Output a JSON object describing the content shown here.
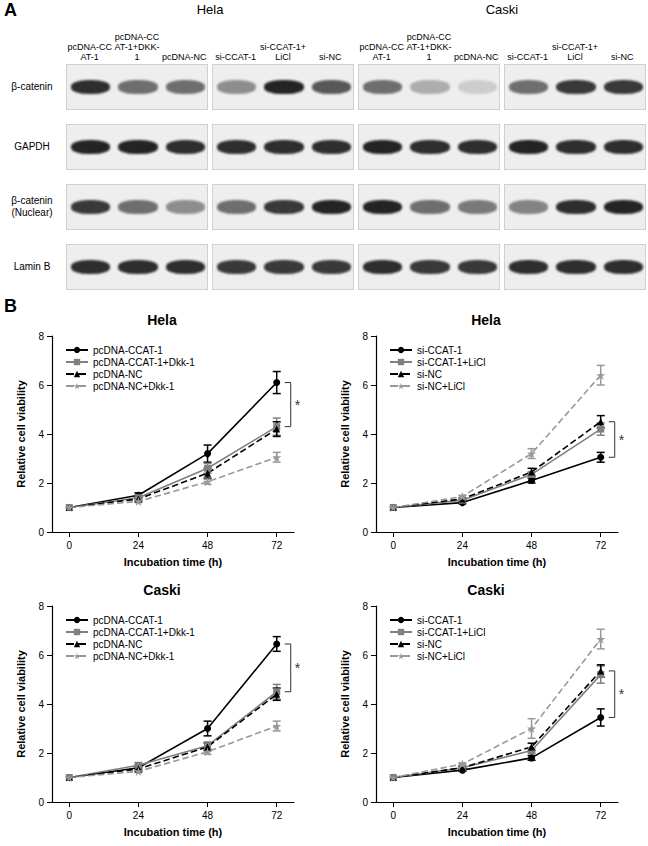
{
  "panel_a": {
    "label": "A",
    "rows": [
      "β-catenin",
      "GAPDH",
      "β-catenin (Nuclear)",
      "Lamin B"
    ],
    "cell_lines": [
      {
        "name": "Hela",
        "groups": [
          {
            "lanes": [
              "pcDNA-CCAT-1",
              "pcDNA-CCAT-1+DKK-1",
              "pcDNA-NC"
            ],
            "intensity": [
              [
                0.9,
                0.6,
                0.6
              ],
              [
                0.95,
                0.95,
                0.9
              ],
              [
                0.85,
                0.6,
                0.45
              ],
              [
                0.9,
                0.9,
                0.9
              ]
            ]
          },
          {
            "lanes": [
              "si-CCAT-1",
              "si-CCAT-1+LiCl",
              "si-NC"
            ],
            "intensity": [
              [
                0.45,
                0.95,
                0.7
              ],
              [
                0.9,
                0.9,
                0.9
              ],
              [
                0.6,
                0.85,
                0.95
              ],
              [
                0.85,
                0.85,
                0.85
              ]
            ]
          }
        ]
      },
      {
        "name": "Caski",
        "groups": [
          {
            "lanes": [
              "pcDNA-CCAT-1",
              "pcDNA-CCAT-1+DKK-1",
              "pcDNA-NC"
            ],
            "intensity": [
              [
                0.6,
                0.3,
                0.15
              ],
              [
                0.95,
                0.9,
                0.9
              ],
              [
                0.95,
                0.6,
                0.55
              ],
              [
                0.9,
                0.85,
                0.85
              ]
            ]
          },
          {
            "lanes": [
              "si-CCAT-1",
              "si-CCAT-1+LiCl",
              "si-NC"
            ],
            "intensity": [
              [
                0.6,
                0.85,
                0.85
              ],
              [
                0.95,
                0.9,
                0.9
              ],
              [
                0.5,
                0.9,
                0.95
              ],
              [
                0.9,
                0.9,
                0.9
              ]
            ]
          }
        ]
      }
    ]
  },
  "panel_b_label": "B",
  "chart_data": [
    {
      "type": "line",
      "title": "Hela",
      "x_label": "Incubation time (h)",
      "y_label": "Relative cell viability",
      "x": [
        0,
        24,
        48,
        72
      ],
      "xlim": [
        -6,
        78
      ],
      "xticks": [
        0,
        24,
        48,
        72
      ],
      "ylim": [
        0,
        8
      ],
      "yticks": [
        0,
        2,
        4,
        6,
        8
      ],
      "grid": false,
      "legend": "upper left",
      "series": [
        {
          "name": "pcDNA-CCAT-1",
          "color": "#000000",
          "marker": "circle",
          "line_style": "solid",
          "values": [
            1,
            1.5,
            3.2,
            6.1
          ],
          "errors": [
            0,
            0.1,
            0.35,
            0.45
          ]
        },
        {
          "name": "pcDNA-CCAT-1+Dkk-1",
          "color": "#808080",
          "marker": "square",
          "line_style": "solid",
          "values": [
            1,
            1.4,
            2.6,
            4.3
          ],
          "errors": [
            0,
            0.1,
            0.2,
            0.35
          ]
        },
        {
          "name": "pcDNA-NC",
          "color": "#000000",
          "marker": "triangle",
          "line_style": "dashed",
          "values": [
            1,
            1.35,
            2.4,
            4.2
          ],
          "errors": [
            0,
            0.1,
            0.2,
            0.3
          ]
        },
        {
          "name": "pcDNA-NC+Dkk-1",
          "color": "#999999",
          "marker": "star",
          "line_style": "dashed",
          "values": [
            1,
            1.25,
            2.05,
            3.05
          ],
          "errors": [
            0,
            0.05,
            0.1,
            0.2
          ]
        }
      ],
      "annotations": [
        {
          "text": "*",
          "x": 72,
          "between": [
            "pcDNA-CCAT-1",
            "pcDNA-CCAT-1+Dkk-1"
          ]
        }
      ]
    },
    {
      "type": "line",
      "title": "Hela",
      "x_label": "Incubation time (h)",
      "y_label": "Relative cell viability",
      "x": [
        0,
        24,
        48,
        72
      ],
      "xlim": [
        -6,
        78
      ],
      "xticks": [
        0,
        24,
        48,
        72
      ],
      "ylim": [
        0,
        8
      ],
      "yticks": [
        0,
        2,
        4,
        6,
        8
      ],
      "grid": false,
      "legend": "upper left",
      "series": [
        {
          "name": "si-CCAT-1",
          "color": "#000000",
          "marker": "circle",
          "line_style": "solid",
          "values": [
            1,
            1.2,
            2.1,
            3.05
          ],
          "errors": [
            0,
            0.05,
            0.1,
            0.2
          ]
        },
        {
          "name": "si-CCAT-1+LiCl",
          "color": "#808080",
          "marker": "square",
          "line_style": "solid",
          "values": [
            1,
            1.3,
            2.35,
            4.2
          ],
          "errors": [
            0,
            0.05,
            0.1,
            0.25
          ]
        },
        {
          "name": "si-NC",
          "color": "#000000",
          "marker": "triangle",
          "line_style": "dashed",
          "values": [
            1,
            1.35,
            2.45,
            4.5
          ],
          "errors": [
            0,
            0.05,
            0.15,
            0.25
          ]
        },
        {
          "name": "si-NC+LiCl",
          "color": "#999999",
          "marker": "star",
          "line_style": "dashed",
          "values": [
            1,
            1.45,
            3.2,
            6.4
          ],
          "errors": [
            0,
            0.05,
            0.2,
            0.4
          ]
        }
      ],
      "annotations": [
        {
          "text": "*",
          "x": 72,
          "between": [
            "si-NC",
            "si-CCAT-1"
          ]
        }
      ]
    },
    {
      "type": "line",
      "title": "Caski",
      "x_label": "Incubation time (h)",
      "y_label": "Relative cell viability",
      "x": [
        0,
        24,
        48,
        72
      ],
      "xlim": [
        -6,
        78
      ],
      "xticks": [
        0,
        24,
        48,
        72
      ],
      "ylim": [
        0,
        8
      ],
      "yticks": [
        0,
        2,
        4,
        6,
        8
      ],
      "grid": false,
      "legend": "upper left",
      "series": [
        {
          "name": "pcDNA-CCAT-1",
          "color": "#000000",
          "marker": "circle",
          "line_style": "solid",
          "values": [
            1,
            1.4,
            3.0,
            6.45
          ],
          "errors": [
            0,
            0.1,
            0.3,
            0.3
          ]
        },
        {
          "name": "pcDNA-CCAT-1+Dkk-1",
          "color": "#808080",
          "marker": "square",
          "line_style": "solid",
          "values": [
            1,
            1.5,
            2.3,
            4.5
          ],
          "errors": [
            0,
            0.1,
            0.15,
            0.3
          ]
        },
        {
          "name": "pcDNA-NC",
          "color": "#000000",
          "marker": "triangle",
          "line_style": "dashed",
          "values": [
            1,
            1.35,
            2.25,
            4.4
          ],
          "errors": [
            0,
            0.1,
            0.15,
            0.25
          ]
        },
        {
          "name": "pcDNA-NC+Dkk-1",
          "color": "#999999",
          "marker": "star",
          "line_style": "dashed",
          "values": [
            1,
            1.25,
            2.05,
            3.1
          ],
          "errors": [
            0,
            0.05,
            0.1,
            0.2
          ]
        }
      ],
      "annotations": [
        {
          "text": "*",
          "x": 72,
          "between": [
            "pcDNA-CCAT-1",
            "pcDNA-CCAT-1+Dkk-1"
          ]
        }
      ]
    },
    {
      "type": "line",
      "title": "Caski",
      "x_label": "Incubation time (h)",
      "y_label": "Relative cell viability",
      "x": [
        0,
        24,
        48,
        72
      ],
      "xlim": [
        -6,
        78
      ],
      "xticks": [
        0,
        24,
        48,
        72
      ],
      "ylim": [
        0,
        8
      ],
      "yticks": [
        0,
        2,
        4,
        6,
        8
      ],
      "grid": false,
      "legend": "upper left",
      "series": [
        {
          "name": "si-CCAT-1",
          "color": "#000000",
          "marker": "circle",
          "line_style": "solid",
          "values": [
            1,
            1.3,
            1.8,
            3.45
          ],
          "errors": [
            0,
            0.05,
            0.1,
            0.35
          ]
        },
        {
          "name": "si-CCAT-1+LiCl",
          "color": "#808080",
          "marker": "square",
          "line_style": "solid",
          "values": [
            1,
            1.4,
            2.1,
            5.2
          ],
          "errors": [
            0,
            0.05,
            0.1,
            0.35
          ]
        },
        {
          "name": "si-NC",
          "color": "#000000",
          "marker": "triangle",
          "line_style": "dashed",
          "values": [
            1,
            1.4,
            2.25,
            5.35
          ],
          "errors": [
            0,
            0.05,
            0.15,
            0.25
          ]
        },
        {
          "name": "si-NC+LiCl",
          "color": "#999999",
          "marker": "star",
          "line_style": "dashed",
          "values": [
            1,
            1.55,
            3.0,
            6.65
          ],
          "errors": [
            0,
            0.05,
            0.4,
            0.4
          ]
        }
      ],
      "annotations": [
        {
          "text": "*",
          "x": 72,
          "between": [
            "si-NC",
            "si-CCAT-1"
          ]
        }
      ]
    }
  ]
}
